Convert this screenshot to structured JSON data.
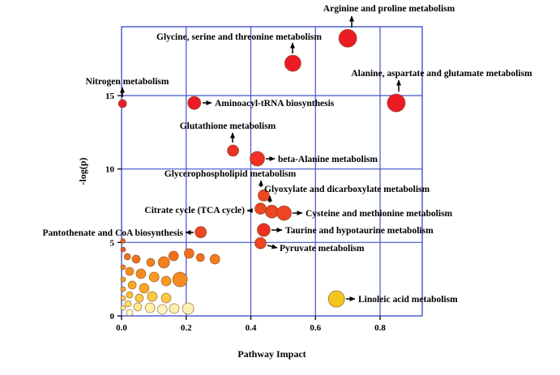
{
  "chart_data": {
    "type": "scatter",
    "title": "",
    "xlabel": "Pathway Impact",
    "ylabel": "-log(p)",
    "xlim": [
      0,
      0.93
    ],
    "ylim": [
      0,
      19.7
    ],
    "xticks": [
      "0.0",
      "0.2",
      "0.4",
      "0.6",
      "0.8"
    ],
    "xtick_values": [
      0,
      0.2,
      0.4,
      0.6,
      0.8
    ],
    "yticks": [
      "0",
      "5",
      "10",
      "15"
    ],
    "ytick_values": [
      0,
      5,
      10,
      15
    ],
    "grid": true,
    "legend": "none",
    "colors": {
      "grid": "#4053c8",
      "arrow": "#000000",
      "bubble_outline": "#6b3410",
      "background": "#ffffff"
    },
    "labeled_points": [
      {
        "label": "Arginine and proline metabolism",
        "x": 0.7,
        "y": 18.9,
        "r": 11,
        "color": "#ec1c24"
      },
      {
        "label": "Glycine, serine and threonine metabolism",
        "x": 0.53,
        "y": 17.2,
        "r": 10,
        "color": "#ec1c24"
      },
      {
        "label": "Alanine, aspartate and glutamate metabolism",
        "x": 0.85,
        "y": 14.5,
        "r": 11,
        "color": "#ec1c24"
      },
      {
        "label": "Nitrogen metabolism",
        "x": 0.003,
        "y": 14.45,
        "r": 5,
        "color": "#ec1c24"
      },
      {
        "label": "Aminoacyl-tRNA biosynthesis",
        "x": 0.225,
        "y": 14.5,
        "r": 8,
        "color": "#ec1c24"
      },
      {
        "label": "Glutathione metabolism",
        "x": 0.345,
        "y": 11.25,
        "r": 7,
        "color": "#ed3123"
      },
      {
        "label": "beta-Alanine metabolism",
        "x": 0.42,
        "y": 10.7,
        "r": 9,
        "color": "#ed3123"
      },
      {
        "label": "Glycerophospholipid metabolism",
        "x": 0.44,
        "y": 8.2,
        "r": 7,
        "color": "#ee4522"
      },
      {
        "label": "Glyoxylate and dicarboxylate metabolism",
        "x": 0.465,
        "y": 7.1,
        "r": 8,
        "color": "#ee4522"
      },
      {
        "label": "Cysteine and methionine metabolism",
        "x": 0.503,
        "y": 7.0,
        "r": 9,
        "color": "#ee4522"
      },
      {
        "label": "Citrate cycle (TCA cycle)",
        "x": 0.43,
        "y": 7.3,
        "r": 7,
        "color": "#ee4522"
      },
      {
        "label": "Taurine and hypotaurine metabolism",
        "x": 0.44,
        "y": 5.85,
        "r": 8,
        "color": "#ed3123"
      },
      {
        "label": "Pantothenate and CoA biosynthesis",
        "x": 0.245,
        "y": 5.7,
        "r": 7,
        "color": "#ee4522"
      },
      {
        "label": "Pyruvate metabolism",
        "x": 0.43,
        "y": 4.95,
        "r": 7,
        "color": "#ee4522"
      },
      {
        "label": "Linoleic acid metabolism",
        "x": 0.665,
        "y": 1.15,
        "r": 10,
        "color": "#f3c71d"
      }
    ],
    "unlabeled_points": [
      [
        0.004,
        5.1,
        3,
        "#ef5a24"
      ],
      [
        0.005,
        4.52,
        3,
        "#ef5a24"
      ],
      [
        0.018,
        4.03,
        4,
        "#f2701d"
      ],
      [
        0.045,
        3.86,
        5,
        "#f2701d"
      ],
      [
        0.09,
        3.64,
        5,
        "#f57e1e"
      ],
      [
        0.131,
        3.64,
        7,
        "#f57e1e"
      ],
      [
        0.161,
        4.08,
        6,
        "#f2701d"
      ],
      [
        0.209,
        4.25,
        6,
        "#f2701d"
      ],
      [
        0.244,
        3.97,
        5,
        "#f2701d"
      ],
      [
        0.289,
        3.86,
        6,
        "#f57e1e"
      ],
      [
        0.005,
        3.31,
        3,
        "#f57e1e"
      ],
      [
        0.025,
        3.03,
        5,
        "#f68c1f"
      ],
      [
        0.06,
        2.87,
        6,
        "#f68c1f"
      ],
      [
        0.101,
        2.65,
        6,
        "#f89c20"
      ],
      [
        0.138,
        2.37,
        6,
        "#f89c20"
      ],
      [
        0.181,
        2.48,
        9,
        "#f68c1f"
      ],
      [
        0.005,
        2.48,
        3,
        "#f89c20"
      ],
      [
        0.033,
        2.1,
        5,
        "#faa823"
      ],
      [
        0.07,
        1.88,
        6,
        "#faa823"
      ],
      [
        0.005,
        1.82,
        3,
        "#faa823"
      ],
      [
        0.025,
        1.43,
        4,
        "#fcbe35"
      ],
      [
        0.055,
        1.21,
        5,
        "#fdc943"
      ],
      [
        0.095,
        1.32,
        6,
        "#fdc943"
      ],
      [
        0.138,
        1.21,
        6,
        "#fdc943"
      ],
      [
        0.005,
        1.21,
        3,
        "#fdc943"
      ],
      [
        0.02,
        0.83,
        4,
        "#fedd66"
      ],
      [
        0.05,
        0.61,
        5,
        "#feea8e"
      ],
      [
        0.088,
        0.55,
        6,
        "#fef0a8"
      ],
      [
        0.126,
        0.44,
        6,
        "#fef4bb"
      ],
      [
        0.163,
        0.5,
        6,
        "#fef0a8"
      ],
      [
        0.206,
        0.5,
        7,
        "#fdf0b5"
      ],
      [
        0.005,
        0.55,
        3,
        "#feea8e"
      ],
      [
        0.025,
        0.22,
        4,
        "#fff7cd"
      ]
    ]
  }
}
